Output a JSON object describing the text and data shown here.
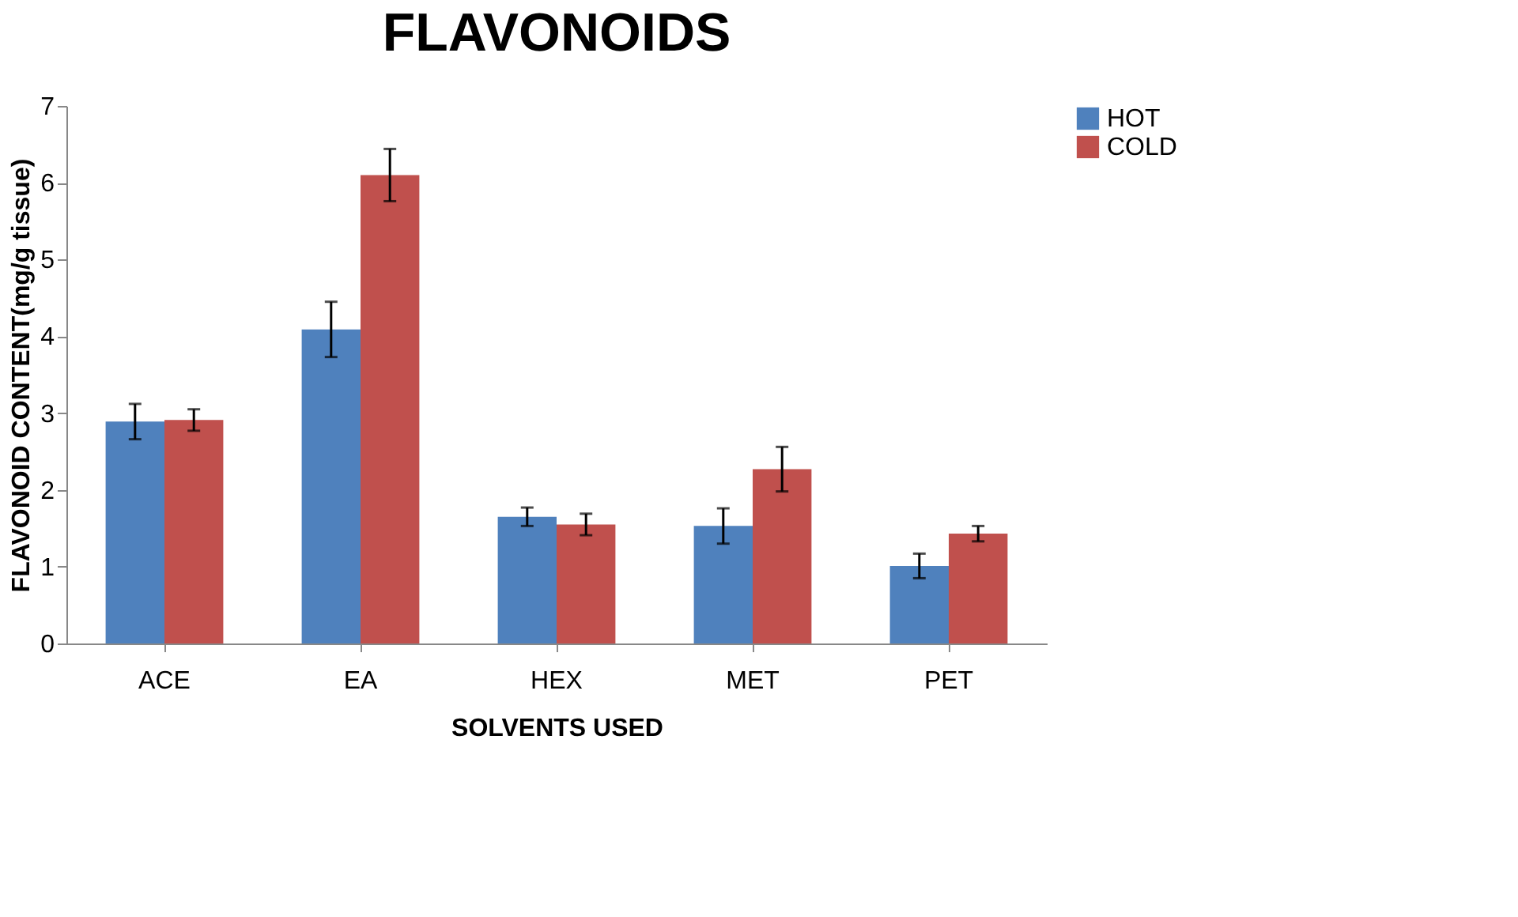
{
  "chart_data": {
    "type": "bar",
    "title": "FLAVONOIDS",
    "xlabel": "SOLVENTS USED",
    "ylabel": "FLAVONOID CONTENT(mg/g tissue)",
    "categories": [
      "ACE",
      "EA",
      "HEX",
      "MET",
      "PET"
    ],
    "series": [
      {
        "name": "HOT",
        "color": "#4f81bd",
        "values": [
          2.89,
          4.09,
          1.65,
          1.53,
          1.01
        ],
        "errors": [
          0.23,
          0.36,
          0.12,
          0.23,
          0.16
        ]
      },
      {
        "name": "COLD",
        "color": "#c0504d",
        "values": [
          2.91,
          6.1,
          1.55,
          2.27,
          1.43
        ],
        "errors": [
          0.14,
          0.34,
          0.14,
          0.29,
          0.1
        ]
      }
    ],
    "ylim": [
      0,
      7
    ],
    "yticks": [
      0,
      1,
      2,
      3,
      4,
      5,
      6,
      7
    ],
    "grid": false,
    "legend": "right"
  }
}
